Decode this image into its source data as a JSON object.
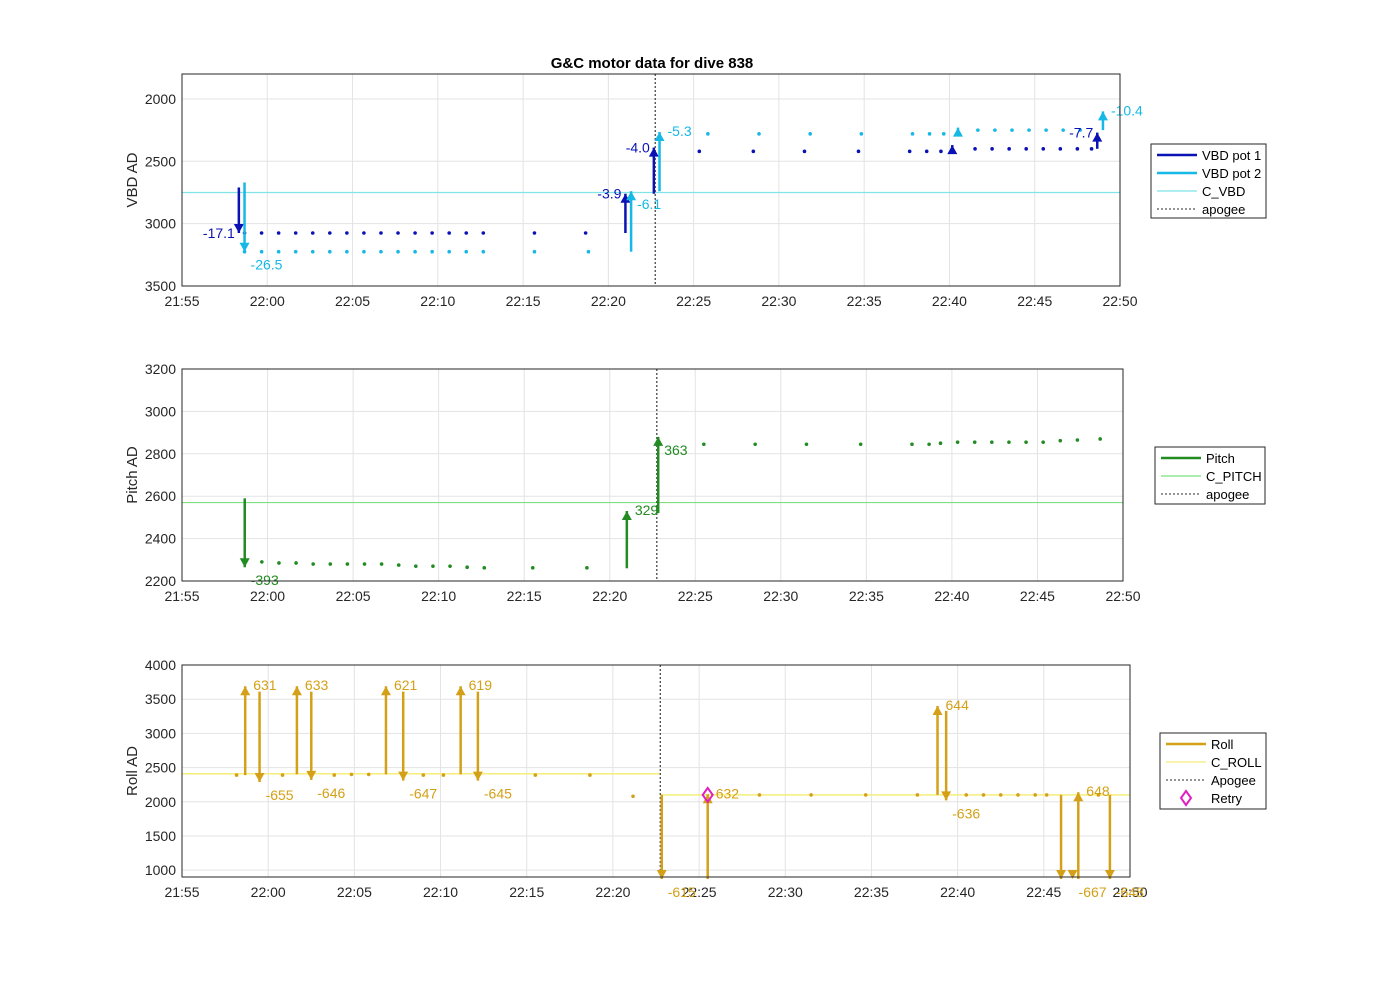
{
  "figure_title": "G&C motor data for dive 838",
  "chart_data": [
    {
      "type": "line",
      "ylabel": "VBD AD",
      "xlabel": "",
      "ylim": [
        3500,
        1800
      ],
      "y_reversed": true,
      "yticks": [
        2000,
        2500,
        3000,
        3500
      ],
      "x_range": [
        "21:55",
        "22:50"
      ],
      "xticks": [
        "21:55",
        "22:00",
        "22:05",
        "22:10",
        "22:15",
        "22:20",
        "22:25",
        "22:30",
        "22:35",
        "22:40",
        "22:45",
        "22:50"
      ],
      "grid": true,
      "legend_position": "right",
      "legend": [
        {
          "label": "VBD pot 1",
          "color": "#0b12b5",
          "style": "solid-thick"
        },
        {
          "label": "VBD pot 2",
          "color": "#16b8e6",
          "style": "solid-thick"
        },
        {
          "label": "C_VBD",
          "color": "#7fe3e8",
          "style": "solid-thin"
        },
        {
          "label": "apogee",
          "color": "#555555",
          "style": "dotted"
        }
      ],
      "reference_line": {
        "name": "C_VBD",
        "y": 2750,
        "color": "#7fe3e8"
      },
      "apogee_time": "22:22:45",
      "series": [
        {
          "name": "VBD pot 1",
          "color": "#0b12b5",
          "marker": "dot",
          "x": [
            "21:58:40",
            "21:59:40",
            "22:00:40",
            "22:01:40",
            "22:02:40",
            "22:03:40",
            "22:04:40",
            "22:05:40",
            "22:06:40",
            "22:07:40",
            "22:08:40",
            "22:09:40",
            "22:10:40",
            "22:11:40",
            "22:12:40",
            "22:15:40",
            "22:18:40",
            "22:25:20",
            "22:28:30",
            "22:31:30",
            "22:34:40",
            "22:37:40",
            "22:38:40",
            "22:39:30",
            "22:41:30",
            "22:42:30",
            "22:43:30",
            "22:44:30",
            "22:45:30",
            "22:46:30",
            "22:47:30",
            "22:48:20"
          ],
          "values": [
            3075,
            3075,
            3075,
            3075,
            3075,
            3075,
            3075,
            3075,
            3075,
            3075,
            3075,
            3075,
            3075,
            3075,
            3075,
            3075,
            3075,
            2420,
            2420,
            2420,
            2420,
            2420,
            2420,
            2420,
            2400,
            2400,
            2400,
            2400,
            2400,
            2400,
            2400,
            2400
          ]
        },
        {
          "name": "VBD pot 2",
          "color": "#16b8e6",
          "marker": "dot",
          "x": [
            "21:58:40",
            "21:59:40",
            "22:00:40",
            "22:01:40",
            "22:02:40",
            "22:03:40",
            "22:04:40",
            "22:05:40",
            "22:06:40",
            "22:07:40",
            "22:08:40",
            "22:09:40",
            "22:10:40",
            "22:11:40",
            "22:12:40",
            "22:15:40",
            "22:18:50",
            "22:25:50",
            "22:28:50",
            "22:31:50",
            "22:34:50",
            "22:37:50",
            "22:38:50",
            "22:39:40",
            "22:41:40",
            "22:42:40",
            "22:43:40",
            "22:44:40",
            "22:45:40",
            "22:46:40",
            "22:47:40"
          ],
          "values": [
            3225,
            3225,
            3225,
            3225,
            3225,
            3225,
            3225,
            3225,
            3225,
            3225,
            3225,
            3225,
            3225,
            3225,
            3225,
            3225,
            3225,
            2280,
            2280,
            2280,
            2280,
            2280,
            2280,
            2280,
            2250,
            2250,
            2250,
            2250,
            2250,
            2250,
            2250
          ]
        }
      ],
      "arrows": [
        {
          "series": "VBD pot 1",
          "x": "21:58:20",
          "from": 2710,
          "to": 3075,
          "label": "-17.1",
          "label_side": "left"
        },
        {
          "series": "VBD pot 2",
          "x": "21:58:40",
          "from": 2670,
          "to": 3225,
          "label": "-26.5",
          "label_side": "right-below"
        },
        {
          "series": "VBD pot 1",
          "x": "22:21:00",
          "from": 3075,
          "to": 2760,
          "label": "-3.9",
          "label_side": "left"
        },
        {
          "series": "VBD pot 2",
          "x": "22:21:20",
          "from": 3225,
          "to": 2740,
          "label": "-6.1",
          "label_side": "right-below"
        },
        {
          "series": "VBD pot 1",
          "x": "22:22:40",
          "from": 2760,
          "to": 2390,
          "label": "-4.0",
          "label_side": "left"
        },
        {
          "series": "VBD pot 2",
          "x": "22:23:00",
          "from": 2740,
          "to": 2265,
          "label": "-5.3",
          "label_side": "right"
        },
        {
          "series": "VBD pot 1",
          "x": "22:40:10",
          "from": 2390,
          "to": 2370,
          "label": "",
          "label_side": "right"
        },
        {
          "series": "VBD pot 2",
          "x": "22:40:30",
          "from": 2250,
          "to": 2230,
          "label": "",
          "label_side": "right"
        },
        {
          "series": "VBD pot 1",
          "x": "22:48:40",
          "from": 2400,
          "to": 2270,
          "label": "-7.7",
          "label_side": "left"
        },
        {
          "series": "VBD pot 2",
          "x": "22:49:00",
          "from": 2250,
          "to": 2100,
          "label": "-10.4",
          "label_side": "right"
        }
      ]
    },
    {
      "type": "line",
      "ylabel": "Pitch AD",
      "xlabel": "",
      "ylim": [
        2200,
        3200
      ],
      "yticks": [
        2200,
        2400,
        2600,
        2800,
        3000,
        3200
      ],
      "x_range": [
        "21:55",
        "22:50"
      ],
      "xticks": [
        "21:55",
        "22:00",
        "22:05",
        "22:10",
        "22:15",
        "22:20",
        "22:25",
        "22:30",
        "22:35",
        "22:40",
        "22:45",
        "22:50"
      ],
      "grid": true,
      "legend_position": "right",
      "legend": [
        {
          "label": "Pitch",
          "color": "#228b22",
          "style": "solid-thick"
        },
        {
          "label": "C_PITCH",
          "color": "#7ee07e",
          "style": "solid-thin"
        },
        {
          "label": "apogee",
          "color": "#555555",
          "style": "dotted"
        }
      ],
      "reference_line": {
        "name": "C_PITCH",
        "y": 2570,
        "color": "#7ee07e"
      },
      "apogee_time": "22:22:45",
      "series": [
        {
          "name": "Pitch",
          "color": "#228b22",
          "marker": "dot",
          "x": [
            "21:59:40",
            "22:00:40",
            "22:01:40",
            "22:02:40",
            "22:03:40",
            "22:04:40",
            "22:05:40",
            "22:06:40",
            "22:07:40",
            "22:08:40",
            "22:09:40",
            "22:10:40",
            "22:11:40",
            "22:12:40",
            "22:15:30",
            "22:18:40",
            "22:25:30",
            "22:28:30",
            "22:31:30",
            "22:34:40",
            "22:37:40",
            "22:38:40",
            "22:39:20",
            "22:40:20",
            "22:41:20",
            "22:42:20",
            "22:43:20",
            "22:44:20",
            "22:45:20",
            "22:46:20",
            "22:47:20",
            "22:48:40"
          ],
          "values": [
            2290,
            2285,
            2285,
            2280,
            2280,
            2280,
            2280,
            2280,
            2275,
            2270,
            2270,
            2270,
            2265,
            2262,
            2262,
            2262,
            2845,
            2845,
            2845,
            2845,
            2845,
            2845,
            2850,
            2855,
            2855,
            2855,
            2855,
            2855,
            2855,
            2862,
            2865,
            2870
          ]
        }
      ],
      "arrows": [
        {
          "series": "Pitch",
          "x": "21:58:40",
          "from": 2590,
          "to": 2265,
          "label": "-393",
          "label_side": "right-below"
        },
        {
          "series": "Pitch",
          "x": "22:21:00",
          "from": 2260,
          "to": 2530,
          "label": "329",
          "label_side": "right"
        },
        {
          "series": "Pitch",
          "x": "22:22:50",
          "from": 2520,
          "to": 2880,
          "label": "363",
          "label_side": "right-below"
        }
      ]
    },
    {
      "type": "line",
      "ylabel": "Roll AD",
      "xlabel": "",
      "ylim": [
        900,
        4000
      ],
      "yticks": [
        1000,
        1500,
        2000,
        2500,
        3000,
        3500,
        4000
      ],
      "x_range": [
        "21:55",
        "22:50"
      ],
      "xticks": [
        "21:55",
        "22:00",
        "22:05",
        "22:10",
        "22:15",
        "22:20",
        "22:25",
        "22:30",
        "22:35",
        "22:40",
        "22:45",
        "22:50"
      ],
      "grid": true,
      "legend_position": "right",
      "legend": [
        {
          "label": "Roll",
          "color": "#d4a017",
          "style": "solid-thick"
        },
        {
          "label": "C_ROLL",
          "color": "#f5ee7a",
          "style": "solid-thin"
        },
        {
          "label": "Apogee",
          "color": "#555555",
          "style": "dotted"
        },
        {
          "label": "Retry",
          "color": "#e020c0",
          "style": "diamond"
        }
      ],
      "reference_line_segments": [
        {
          "name": "C_ROLL",
          "from": "21:55",
          "to": "22:22:45",
          "y": 2410,
          "color": "#f5ee7a"
        },
        {
          "name": "C_ROLL",
          "from": "22:22:45",
          "to": "22:50",
          "y": 2100,
          "color": "#f5ee7a"
        }
      ],
      "apogee_time": "22:22:45",
      "retry": {
        "x": "22:25:30",
        "y": 2100
      },
      "series": [
        {
          "name": "Roll",
          "color": "#d4a017",
          "marker": "dot",
          "x": [
            "21:58:10",
            "22:00:50",
            "22:03:50",
            "22:04:50",
            "22:05:50",
            "22:09:00",
            "22:10:10",
            "22:15:30",
            "22:18:40",
            "22:21:10",
            "22:28:30",
            "22:31:30",
            "22:34:40",
            "22:37:40",
            "22:40:30",
            "22:41:30",
            "22:42:30",
            "22:43:30",
            "22:44:30",
            "22:45:10",
            "22:48:10"
          ],
          "values": [
            2390,
            2390,
            2390,
            2400,
            2400,
            2390,
            2390,
            2390,
            2390,
            2080,
            2100,
            2100,
            2100,
            2100,
            2100,
            2100,
            2100,
            2100,
            2100,
            2100,
            2100
          ]
        }
      ],
      "arrows": [
        {
          "series": "Roll",
          "x": "21:58:40",
          "from": 2390,
          "to": 3690,
          "label": "631",
          "label_side": "right"
        },
        {
          "series": "Roll",
          "x": "21:59:30",
          "from": 3610,
          "to": 2290,
          "label": "-655",
          "label_side": "right-below"
        },
        {
          "series": "Roll",
          "x": "22:01:40",
          "from": 2400,
          "to": 3690,
          "label": "633",
          "label_side": "right"
        },
        {
          "series": "Roll",
          "x": "22:02:30",
          "from": 3610,
          "to": 2320,
          "label": "-646",
          "label_side": "right-below"
        },
        {
          "series": "Roll",
          "x": "22:06:50",
          "from": 2400,
          "to": 3690,
          "label": "621",
          "label_side": "right"
        },
        {
          "series": "Roll",
          "x": "22:07:50",
          "from": 3610,
          "to": 2310,
          "label": "-647",
          "label_side": "right-below"
        },
        {
          "series": "Roll",
          "x": "22:11:10",
          "from": 2400,
          "to": 3690,
          "label": "619",
          "label_side": "right"
        },
        {
          "series": "Roll",
          "x": "22:12:10",
          "from": 3610,
          "to": 2310,
          "label": "-645",
          "label_side": "right-below"
        },
        {
          "series": "Roll",
          "x": "22:22:50",
          "from": 2100,
          "to": 870,
          "label": "-615",
          "label_side": "right-below"
        },
        {
          "series": "Roll",
          "x": "22:25:30",
          "from": 870,
          "to": 2110,
          "label": "632",
          "label_side": "right"
        },
        {
          "series": "Roll",
          "x": "22:38:50",
          "from": 2100,
          "to": 3400,
          "label": "644",
          "label_side": "right"
        },
        {
          "series": "Roll",
          "x": "22:39:20",
          "from": 3330,
          "to": 2020,
          "label": "-636",
          "label_side": "right-below"
        },
        {
          "series": "Roll",
          "x": "22:46:00",
          "from": 2100,
          "to": 870,
          "label": "",
          "label_side": "right"
        },
        {
          "series": "Roll",
          "x": "22:47:00",
          "from": 870,
          "to": 2140,
          "label": "648",
          "label_side": "right"
        },
        {
          "series": "Roll",
          "x": "22:46:40",
          "from": 870,
          "to": 870,
          "label": "-667",
          "label_side": "right-below"
        },
        {
          "series": "Roll",
          "x": "22:48:50",
          "from": 2100,
          "to": 870,
          "label": "-648",
          "label_side": "right-below"
        }
      ]
    }
  ]
}
